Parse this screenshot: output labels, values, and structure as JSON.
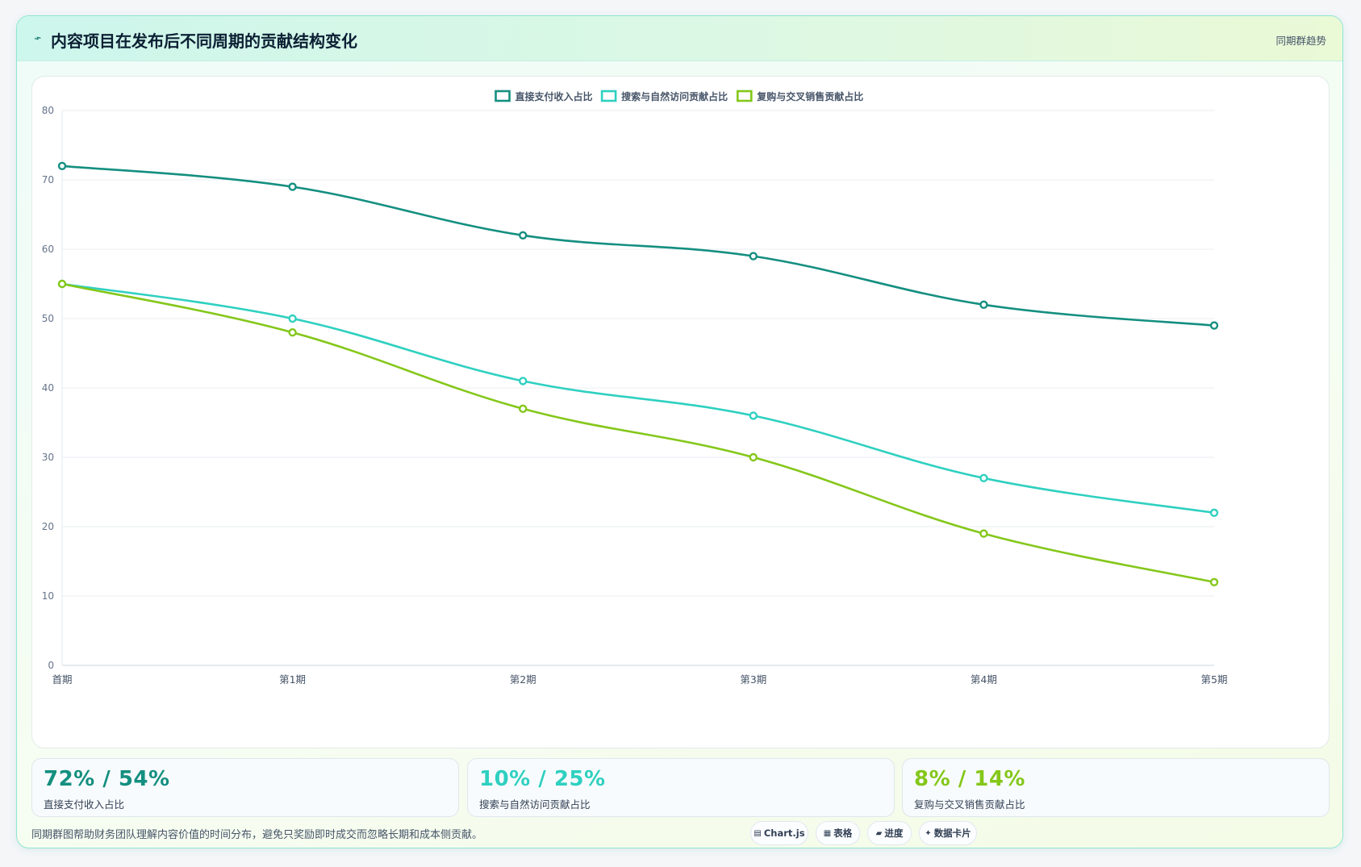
{
  "header": {
    "icon": "sparkline-icon",
    "title": "内容项目在发布后不同周期的贡献结构变化",
    "tag": "同期群趋势"
  },
  "chart_data": {
    "type": "line",
    "categories": [
      "首期",
      "第1期",
      "第2期",
      "第3期",
      "第4期",
      "第5期"
    ],
    "series": [
      {
        "name": "直接支付收入占比",
        "color": "#148f80",
        "values": [
          72,
          69,
          62,
          59,
          52,
          49
        ]
      },
      {
        "name": "搜索与自然访问贡献占比",
        "color": "#2fd0c0",
        "values": [
          55,
          50,
          41,
          36,
          27,
          22
        ]
      },
      {
        "name": "复购与交叉销售贡献占比",
        "color": "#84c71a",
        "values": [
          55,
          48,
          37,
          30,
          19,
          12
        ]
      }
    ],
    "y_ticks": [
      "0",
      "10",
      "20",
      "30",
      "40",
      "50",
      "60",
      "70",
      "80"
    ],
    "ylim": [
      0,
      80
    ],
    "grid": true,
    "legend_position": "top-center"
  },
  "stats": [
    {
      "value": "72% / 54%",
      "label": "直接支付收入占比",
      "color": "#148f80"
    },
    {
      "value": "10% / 25%",
      "label": "搜索与自然访问贡献占比",
      "color": "#2fd0c0"
    },
    {
      "value": "8% / 14%",
      "label": "复购与交叉销售贡献占比",
      "color": "#84c71a"
    }
  ],
  "footer": {
    "note": "同期群图帮助财务团队理解内容价值的时间分布，避免只奖励即时成交而忽略长期和成本侧贡献。",
    "chips": [
      {
        "icon": "▤",
        "icon_name": "chart-icon",
        "label": "Chart.js"
      },
      {
        "icon": "▦",
        "icon_name": "table-icon",
        "label": "表格"
      },
      {
        "icon": "▰",
        "icon_name": "progress-icon",
        "label": "进度"
      },
      {
        "icon": "✦",
        "icon_name": "sparkle-icon",
        "label": "数据卡片"
      }
    ]
  }
}
